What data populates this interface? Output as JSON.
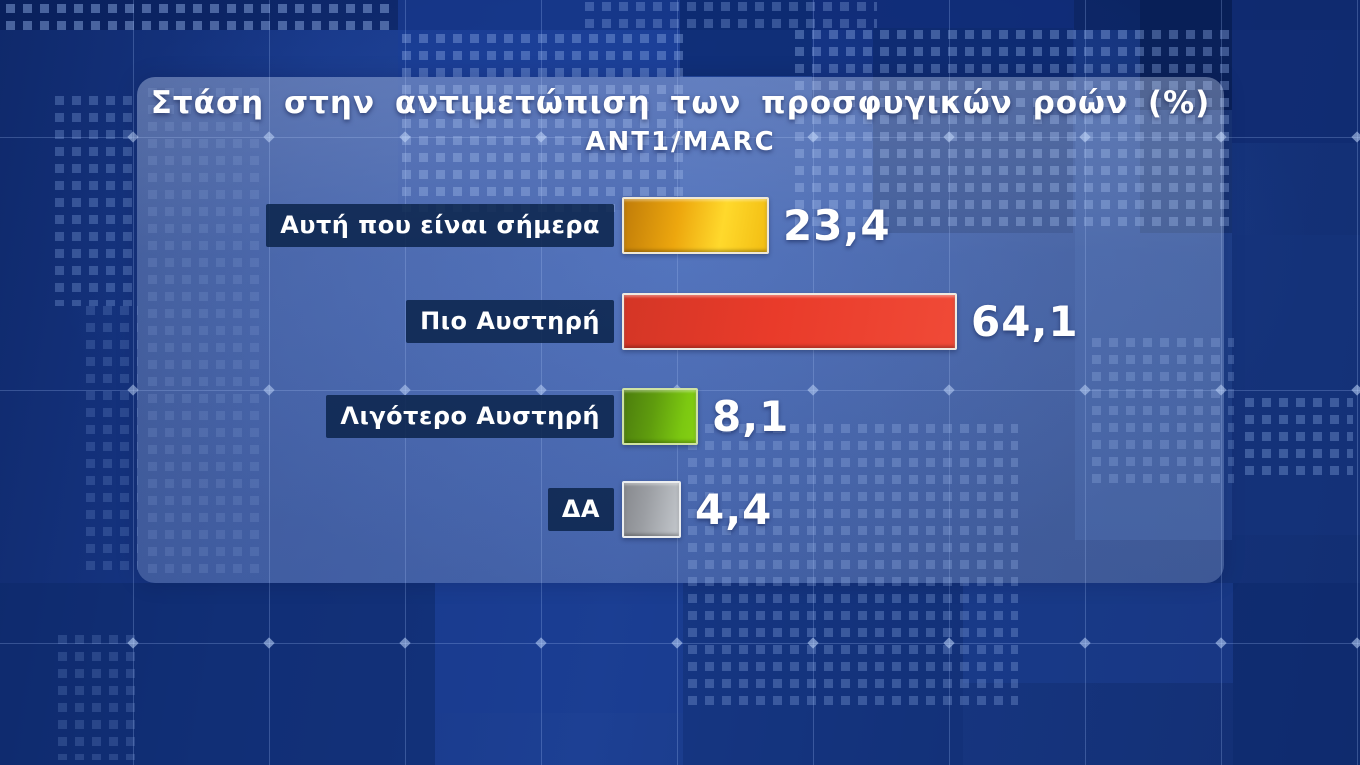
{
  "chart_data": {
    "type": "bar",
    "orientation": "horizontal",
    "title": "Στάση στην αντιμετώπιση των προσφυγικών ροών (%)",
    "subtitle": "ANT1/MARC",
    "unit": "%",
    "categories": [
      "Αυτή που είναι σήμερα",
      "Πιο Αυστηρή",
      "Λιγότερο Αυστηρή",
      "ΔΑ"
    ],
    "values": [
      23.4,
      64.1,
      8.1,
      4.4
    ],
    "value_labels": [
      "23,4",
      "64,1",
      "8,1",
      "4,4"
    ],
    "bar_colors": [
      "#f2b90f",
      "#ea3c2b",
      "#77c411",
      "#a3a7ac"
    ],
    "bar_styles": [
      {
        "gradient": [
          "#c07c09 0%",
          "#eda70e 38%",
          "#ffd92c 68%",
          "#f2bd12 100%"
        ],
        "border": "#efe8d6"
      },
      {
        "gradient": [
          "#d43626 0%",
          "#e93b2a 45%",
          "#f04a37 100%"
        ],
        "border": "#f0eae0"
      },
      {
        "gradient": [
          "#4c7d0d 0%",
          "#5f9c0e 40%",
          "#7cc811 80%",
          "#85d013 100%"
        ],
        "border": "#cfe3a2"
      },
      {
        "gradient": [
          "#87898e 0%",
          "#9b9ea3 40%",
          "#c3c7cc 100%"
        ],
        "border": "#ebedef"
      }
    ],
    "label_box_color": "#0d264d",
    "text_color": "#ffffff",
    "layout": {
      "legend": "none",
      "grid": "off",
      "value_position": "right-of-bar"
    }
  },
  "background": {
    "theme_color": "#1d4094",
    "panel_tint": "rgba(180,198,232,0.32)"
  }
}
